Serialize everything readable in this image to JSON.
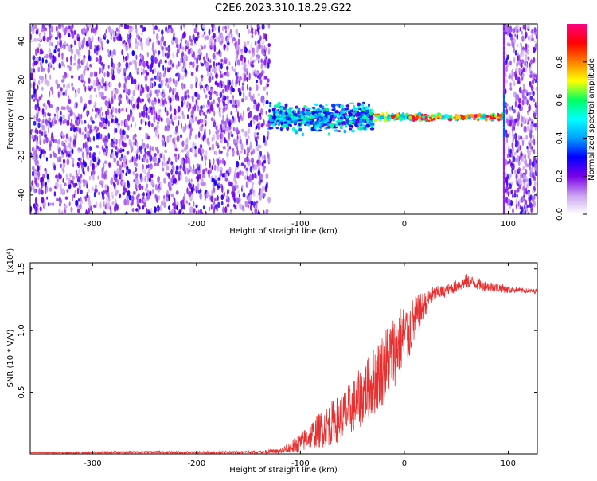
{
  "title": "C2E6.2023.310.18.29.G22",
  "chart_data": [
    {
      "type": "heatmap",
      "xlabel": "Height of straight line (km)",
      "ylabel": "Frequency (Hz)",
      "xlim": [
        -360,
        128
      ],
      "ylim": [
        -50,
        49
      ],
      "xticks": [
        -300,
        -200,
        -100,
        0,
        100
      ],
      "yticks": [
        -40,
        -20,
        0,
        20,
        40
      ],
      "colorbar": {
        "label": "Normalized spectral amplitude",
        "range": [
          0.0,
          1.0
        ],
        "ticks": [
          "0.0",
          "0.2",
          "0.4",
          "0.6",
          "0.8"
        ],
        "tick_values": [
          0.0,
          0.2,
          0.4,
          0.6,
          0.8
        ],
        "colors": [
          "#ffffff",
          "#c8a0f0",
          "#7a00e8",
          "#0000ff",
          "#00a0ff",
          "#00ffff",
          "#00ff60",
          "#ffff00",
          "#ff8000",
          "#ff0000",
          "#ff0080"
        ]
      },
      "regions": [
        {
          "x": [
            -360,
            -130
          ],
          "freq": [
            -50,
            49
          ],
          "content": "broadband noise",
          "amplitude": [
            0.05,
            0.3
          ]
        },
        {
          "x": [
            -130,
            -30
          ],
          "freq": [
            -9,
            9
          ],
          "content": "signal band",
          "amplitude": [
            0.2,
            0.6
          ]
        },
        {
          "x": [
            -30,
            95
          ],
          "freq": [
            -2,
            3
          ],
          "content": "narrow carrier line",
          "amplitude": [
            0.4,
            1.0
          ]
        },
        {
          "x": [
            97,
            128
          ],
          "freq": [
            -50,
            49
          ],
          "content": "broadband noise",
          "amplitude": [
            0.05,
            0.3
          ]
        }
      ]
    },
    {
      "type": "line",
      "xlabel": "Height of straight line (km)",
      "ylabel": "SNR (10 * V/V)",
      "y_multiplier": "(x10⁴)",
      "xlim": [
        -360,
        128
      ],
      "ylim": [
        0,
        1.55
      ],
      "xticks": [
        -300,
        -200,
        -100,
        0,
        100
      ],
      "yticks": [
        "0.5",
        "1.0",
        "1.5"
      ],
      "ytick_values": [
        0.5,
        1.0,
        1.5
      ],
      "color": "#e83030",
      "series": [
        {
          "x": [
            -360,
            -300,
            -250,
            -200,
            -150,
            -120,
            -110,
            -100,
            -90,
            -80,
            -70,
            -60,
            -50,
            -40,
            -30,
            -20,
            -15,
            -10,
            -5,
            0,
            5,
            10,
            15,
            20,
            25,
            30,
            40,
            50,
            60,
            70,
            80,
            90,
            100,
            110,
            120,
            128
          ],
          "values": [
            0.01,
            0.01,
            0.015,
            0.01,
            0.015,
            0.02,
            0.05,
            0.09,
            0.15,
            0.2,
            0.25,
            0.3,
            0.38,
            0.48,
            0.58,
            0.7,
            0.78,
            0.83,
            0.9,
            0.95,
            1.0,
            1.08,
            1.15,
            1.22,
            1.27,
            1.3,
            1.32,
            1.36,
            1.4,
            1.38,
            1.36,
            1.35,
            1.33,
            1.33,
            1.32,
            1.32
          ],
          "noise": [
            0.0,
            0.01,
            0.01,
            0.01,
            0.01,
            0.02,
            0.05,
            0.08,
            0.11,
            0.15,
            0.18,
            0.2,
            0.22,
            0.25,
            0.28,
            0.3,
            0.3,
            0.3,
            0.3,
            0.28,
            0.25,
            0.2,
            0.15,
            0.1,
            0.08,
            0.06,
            0.05,
            0.05,
            0.06,
            0.05,
            0.04,
            0.04,
            0.03,
            0.02,
            0.02,
            0.02
          ]
        }
      ]
    }
  ]
}
